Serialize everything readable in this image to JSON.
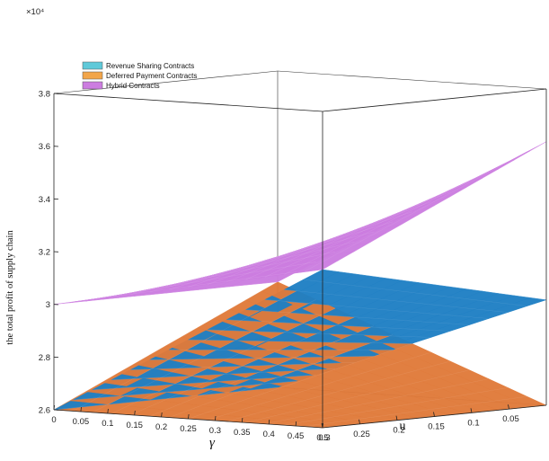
{
  "chart_data": {
    "type": "surface3d",
    "xlabel": "γ",
    "ylabel": "u",
    "zlabel": "the total profit of supply chain",
    "z_multiplier": "×10⁴",
    "x_range": [
      0,
      0.5
    ],
    "y_range": [
      0.3,
      0
    ],
    "zlim": [
      2.6,
      3.8
    ],
    "x_ticks": [
      "0",
      "0.05",
      "0.1",
      "0.15",
      "0.2",
      "0.25",
      "0.3",
      "0.35",
      "0.4",
      "0.45",
      "0.5"
    ],
    "y_ticks": [
      "0.3",
      "0.25",
      "0.2",
      "0.15",
      "0.1",
      "0.05"
    ],
    "z_ticks": [
      "2.6",
      "2.8",
      "3",
      "3.2",
      "3.4",
      "3.6",
      "3.8"
    ],
    "legend_position": "top-left",
    "series": [
      {
        "name": "Revenue Sharing Contracts",
        "color": "#1f7fc4",
        "legend_color": "#5fc9d9",
        "corners": {
          "g0_u0": 2.6,
          "g05_u0": 3.0,
          "g0_u03": 2.6,
          "g05_u03": 3.2
        }
      },
      {
        "name": "Deferred Payment Contracts",
        "color": "#e07a3a",
        "legend_color": "#f2a54a",
        "corners": {
          "g0_u0": 3.0,
          "g05_u0": 2.6,
          "g0_u03": 2.6,
          "g05_u03": 2.6
        }
      },
      {
        "name": "Hybrid Contracts",
        "color": "#cc7de0",
        "legend_color": "#cc7de0",
        "corners": {
          "g0_u0": 3.0,
          "g05_u0": 3.6,
          "g0_u03": 3.0,
          "g05_u03": 3.2
        }
      }
    ]
  }
}
